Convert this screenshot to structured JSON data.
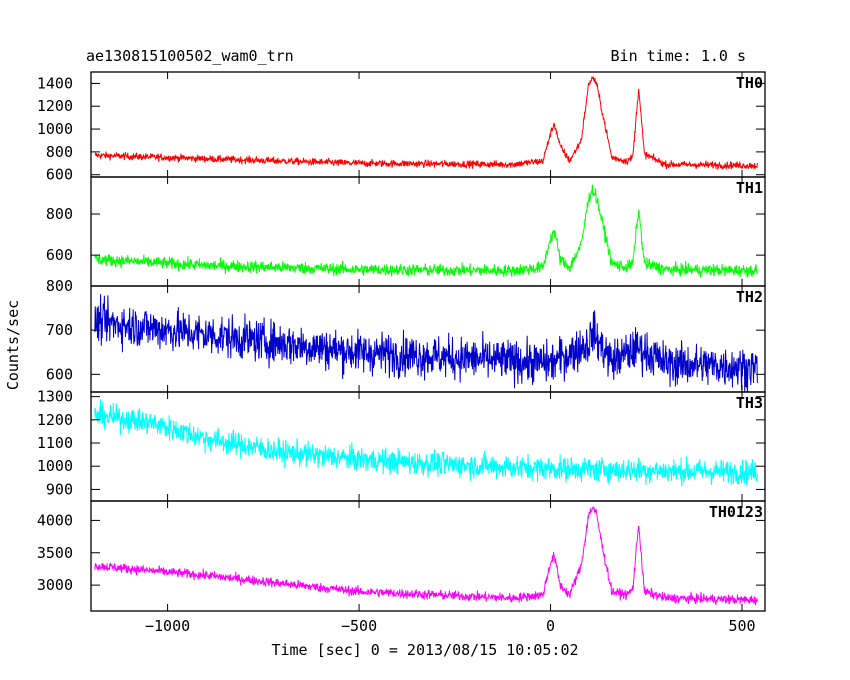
{
  "header": {
    "title": "ae130815100502_wam0_trn",
    "bin_time": "Bin time: 1.0 s"
  },
  "chart_data": {
    "type": "line",
    "xlabel": "Time [sec] 0 = 2013/08/15 10:05:02",
    "ylabel": "Counts/sec",
    "xlim": [
      -1200,
      560
    ],
    "x_ticks": [
      -1000,
      -500,
      0,
      500
    ],
    "x_tick_labels": [
      "−1000",
      "−500",
      "0",
      "500"
    ],
    "data_x_range": [
      -1190,
      540
    ],
    "bin_time_s": 1.0,
    "grid": false,
    "panels": [
      {
        "name": "TH0",
        "color": "#ff0000",
        "ylim": [
          580,
          1500
        ],
        "yticks": [
          600,
          800,
          1000,
          1200,
          1400
        ],
        "key_points": {
          "x": [
            -1190,
            -900,
            -500,
            -100,
            -20,
            0,
            10,
            25,
            50,
            80,
            100,
            110,
            120,
            135,
            160,
            200,
            215,
            230,
            245,
            300,
            540
          ],
          "y": [
            770,
            740,
            700,
            690,
            720,
            960,
            1050,
            850,
            720,
            900,
            1400,
            1450,
            1400,
            1150,
            750,
            720,
            760,
            1360,
            780,
            690,
            680
          ]
        },
        "noise": 30
      },
      {
        "name": "TH1",
        "color": "#00ff00",
        "ylim": [
          450,
          980
        ],
        "yticks": [
          600,
          800
        ],
        "key_points": {
          "x": [
            -1190,
            -900,
            -500,
            -100,
            -20,
            0,
            10,
            25,
            50,
            80,
            100,
            110,
            120,
            135,
            160,
            200,
            215,
            230,
            245,
            300,
            540
          ],
          "y": [
            580,
            550,
            530,
            525,
            540,
            680,
            720,
            580,
            540,
            650,
            880,
            920,
            880,
            760,
            560,
            540,
            560,
            820,
            560,
            530,
            525
          ]
        },
        "noise": 28
      },
      {
        "name": "TH2",
        "color": "#0000cc",
        "ylim": [
          560,
          800
        ],
        "yticks": [
          600,
          700,
          800
        ],
        "key_points": {
          "x": [
            -1190,
            -900,
            -500,
            -100,
            0,
            100,
            110,
            120,
            160,
            230,
            300,
            540
          ],
          "y": [
            720,
            690,
            650,
            630,
            625,
            670,
            700,
            680,
            630,
            660,
            625,
            615
          ]
        },
        "noise": 45
      },
      {
        "name": "TH3",
        "color": "#00ffff",
        "ylim": [
          850,
          1320
        ],
        "yticks": [
          900,
          1000,
          1100,
          1200,
          1300
        ],
        "key_points": {
          "x": [
            -1190,
            -1050,
            -900,
            -700,
            -500,
            -300,
            0,
            300,
            540
          ],
          "y": [
            1220,
            1190,
            1120,
            1060,
            1030,
            1010,
            990,
            980,
            975
          ]
        },
        "noise": 50
      },
      {
        "name": "TH0123",
        "color": "#ff00ff",
        "ylim": [
          2600,
          4300
        ],
        "yticks": [
          3000,
          3500,
          4000
        ],
        "key_points": {
          "x": [
            -1190,
            -900,
            -500,
            -100,
            -20,
            0,
            10,
            25,
            50,
            80,
            100,
            110,
            120,
            135,
            160,
            200,
            215,
            230,
            245,
            300,
            540
          ],
          "y": [
            3300,
            3150,
            2900,
            2800,
            2850,
            3350,
            3450,
            3000,
            2850,
            3300,
            4100,
            4200,
            4100,
            3600,
            2900,
            2850,
            2950,
            3950,
            2900,
            2800,
            2770
          ]
        },
        "noise": 70
      }
    ]
  }
}
